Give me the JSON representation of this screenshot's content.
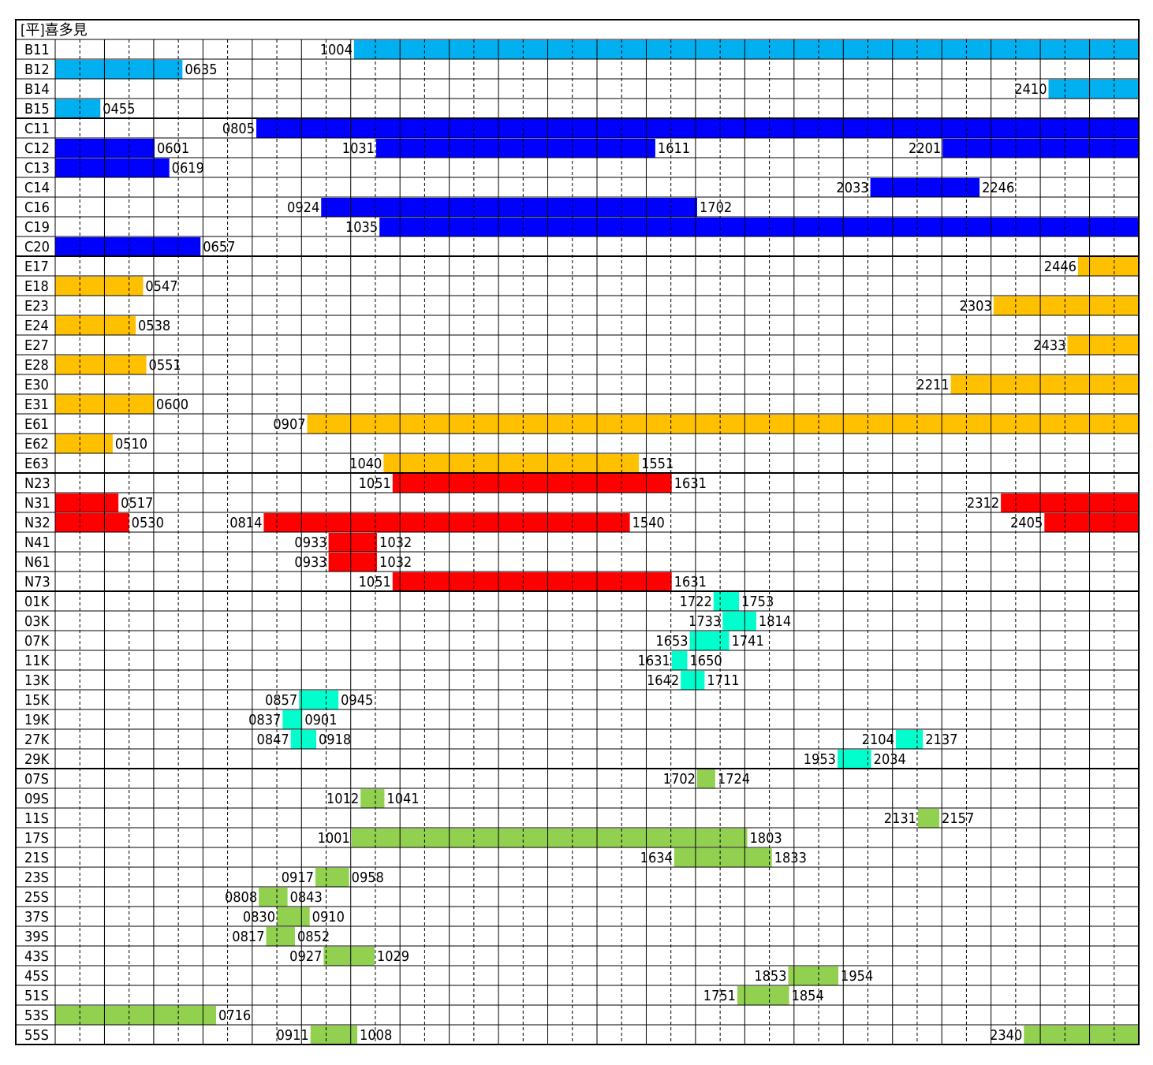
{
  "chart_data": {
    "type": "gantt",
    "title": "[平]喜多見",
    "time_start_hour": 4,
    "time_end_hour": 26,
    "colors": {
      "B": "#00b0f0",
      "C": "#0000ff",
      "E": "#ffc000",
      "N": "#ff0000",
      "K": "#00ffcc",
      "S": "#92d050"
    },
    "rows": [
      {
        "id": "B11",
        "group": "B",
        "segments": [
          {
            "start": "1004",
            "end": null
          }
        ]
      },
      {
        "id": "B12",
        "group": "B",
        "segments": [
          {
            "start": null,
            "end": "0635"
          }
        ]
      },
      {
        "id": "B14",
        "group": "B",
        "segments": [
          {
            "start": "2410",
            "end": null
          }
        ]
      },
      {
        "id": "B15",
        "group": "B",
        "segments": [
          {
            "start": null,
            "end": "0455"
          }
        ]
      },
      {
        "id": "C11",
        "group": "C",
        "segments": [
          {
            "start": "0805",
            "end": null
          }
        ]
      },
      {
        "id": "C12",
        "group": "C",
        "segments": [
          {
            "start": null,
            "end": "0601"
          },
          {
            "start": "1031",
            "end": "1611"
          },
          {
            "start": "2201",
            "end": null
          }
        ]
      },
      {
        "id": "C13",
        "group": "C",
        "segments": [
          {
            "start": null,
            "end": "0619"
          }
        ]
      },
      {
        "id": "C14",
        "group": "C",
        "segments": [
          {
            "start": "2033",
            "end": "2246"
          }
        ]
      },
      {
        "id": "C16",
        "group": "C",
        "segments": [
          {
            "start": "0924",
            "end": "1702"
          }
        ]
      },
      {
        "id": "C19",
        "group": "C",
        "segments": [
          {
            "start": "1035",
            "end": null
          }
        ]
      },
      {
        "id": "C20",
        "group": "C",
        "segments": [
          {
            "start": null,
            "end": "0657"
          }
        ]
      },
      {
        "id": "E17",
        "group": "E",
        "segments": [
          {
            "start": "2446",
            "end": null
          }
        ]
      },
      {
        "id": "E18",
        "group": "E",
        "segments": [
          {
            "start": null,
            "end": "0547"
          }
        ]
      },
      {
        "id": "E23",
        "group": "E",
        "segments": [
          {
            "start": "2303",
            "end": null
          }
        ]
      },
      {
        "id": "E24",
        "group": "E",
        "segments": [
          {
            "start": null,
            "end": "0538"
          }
        ]
      },
      {
        "id": "E27",
        "group": "E",
        "segments": [
          {
            "start": "2433",
            "end": null
          }
        ]
      },
      {
        "id": "E28",
        "group": "E",
        "segments": [
          {
            "start": null,
            "end": "0551"
          }
        ]
      },
      {
        "id": "E30",
        "group": "E",
        "segments": [
          {
            "start": "2211",
            "end": null
          }
        ]
      },
      {
        "id": "E31",
        "group": "E",
        "segments": [
          {
            "start": null,
            "end": "0600"
          }
        ]
      },
      {
        "id": "E61",
        "group": "E",
        "segments": [
          {
            "start": "0907",
            "end": null
          }
        ]
      },
      {
        "id": "E62",
        "group": "E",
        "segments": [
          {
            "start": null,
            "end": "0510"
          }
        ]
      },
      {
        "id": "E63",
        "group": "E",
        "segments": [
          {
            "start": "1040",
            "end": "1551"
          }
        ]
      },
      {
        "id": "N23",
        "group": "N",
        "segments": [
          {
            "start": "1051",
            "end": "1631"
          }
        ]
      },
      {
        "id": "N31",
        "group": "N",
        "segments": [
          {
            "start": null,
            "end": "0517"
          },
          {
            "start": "2312",
            "end": null
          }
        ]
      },
      {
        "id": "N32",
        "group": "N",
        "segments": [
          {
            "start": null,
            "end": "0530"
          },
          {
            "start": "0814",
            "end": "1540"
          },
          {
            "start": "2405",
            "end": null
          }
        ]
      },
      {
        "id": "N41",
        "group": "N",
        "segments": [
          {
            "start": "0933",
            "end": "1032"
          }
        ]
      },
      {
        "id": "N61",
        "group": "N",
        "segments": [
          {
            "start": "0933",
            "end": "1032"
          }
        ]
      },
      {
        "id": "N73",
        "group": "N",
        "segments": [
          {
            "start": "1051",
            "end": "1631"
          }
        ]
      },
      {
        "id": "01K",
        "group": "K",
        "segments": [
          {
            "start": "1722",
            "end": "1753"
          }
        ]
      },
      {
        "id": "03K",
        "group": "K",
        "segments": [
          {
            "start": "1733",
            "end": "1814"
          }
        ]
      },
      {
        "id": "07K",
        "group": "K",
        "segments": [
          {
            "start": "1653",
            "end": "1741"
          }
        ]
      },
      {
        "id": "11K",
        "group": "K",
        "segments": [
          {
            "start": "1631",
            "end": "1650"
          }
        ]
      },
      {
        "id": "13K",
        "group": "K",
        "segments": [
          {
            "start": "1642",
            "end": "1711"
          }
        ]
      },
      {
        "id": "15K",
        "group": "K",
        "segments": [
          {
            "start": "0857",
            "end": "0945"
          }
        ]
      },
      {
        "id": "19K",
        "group": "K",
        "segments": [
          {
            "start": "0837",
            "end": "0901"
          }
        ]
      },
      {
        "id": "27K",
        "group": "K",
        "segments": [
          {
            "start": "0847",
            "end": "0918"
          },
          {
            "start": "2104",
            "end": "2137"
          }
        ]
      },
      {
        "id": "29K",
        "group": "K",
        "segments": [
          {
            "start": "1953",
            "end": "2034"
          }
        ]
      },
      {
        "id": "07S",
        "group": "S",
        "segments": [
          {
            "start": "1702",
            "end": "1724"
          }
        ]
      },
      {
        "id": "09S",
        "group": "S",
        "segments": [
          {
            "start": "1012",
            "end": "1041"
          }
        ]
      },
      {
        "id": "11S",
        "group": "S",
        "segments": [
          {
            "start": "2131",
            "end": "2157"
          }
        ]
      },
      {
        "id": "17S",
        "group": "S",
        "segments": [
          {
            "start": "1001",
            "end": "1803"
          }
        ]
      },
      {
        "id": "21S",
        "group": "S",
        "segments": [
          {
            "start": "1634",
            "end": "1833"
          }
        ]
      },
      {
        "id": "23S",
        "group": "S",
        "segments": [
          {
            "start": "0917",
            "end": "0958"
          }
        ]
      },
      {
        "id": "25S",
        "group": "S",
        "segments": [
          {
            "start": "0808",
            "end": "0843"
          }
        ]
      },
      {
        "id": "37S",
        "group": "S",
        "segments": [
          {
            "start": "0830",
            "end": "0910"
          }
        ]
      },
      {
        "id": "39S",
        "group": "S",
        "segments": [
          {
            "start": "0817",
            "end": "0852"
          }
        ]
      },
      {
        "id": "43S",
        "group": "S",
        "segments": [
          {
            "start": "0927",
            "end": "1029"
          }
        ]
      },
      {
        "id": "45S",
        "group": "S",
        "segments": [
          {
            "start": "1853",
            "end": "1954"
          }
        ]
      },
      {
        "id": "51S",
        "group": "S",
        "segments": [
          {
            "start": "1751",
            "end": "1854"
          }
        ]
      },
      {
        "id": "53S",
        "group": "S",
        "segments": [
          {
            "start": null,
            "end": "0716"
          }
        ]
      },
      {
        "id": "55S",
        "group": "S",
        "segments": [
          {
            "start": "0911",
            "end": "1008"
          },
          {
            "start": "2340",
            "end": null
          }
        ]
      }
    ]
  }
}
